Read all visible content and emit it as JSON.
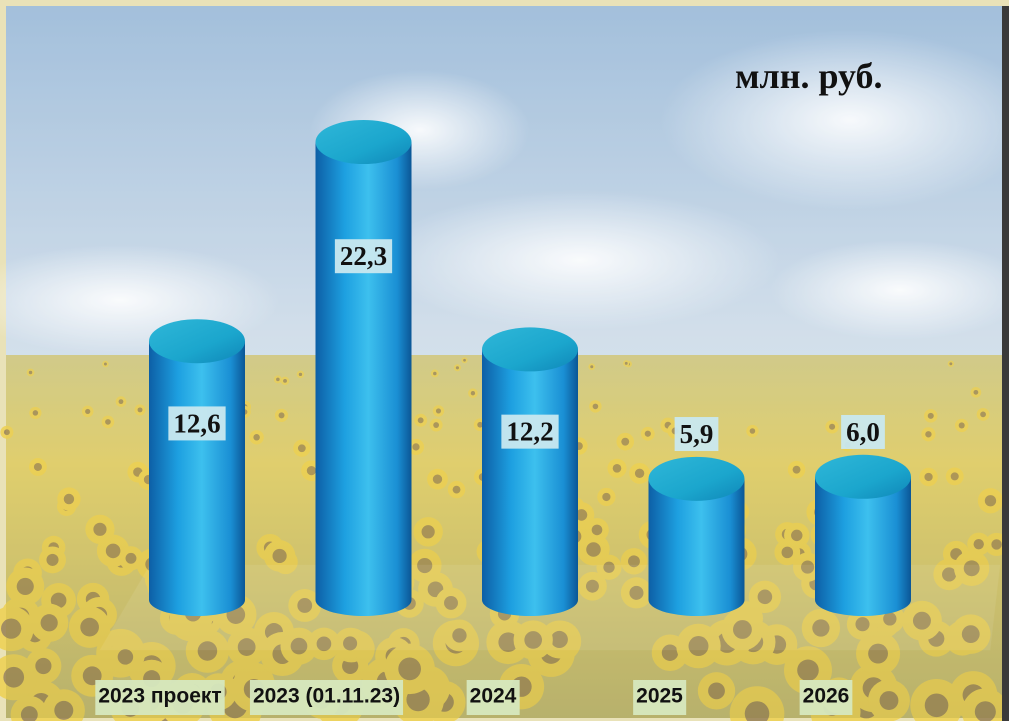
{
  "chart_data": {
    "type": "bar3d",
    "subtitle": "млн. руб.",
    "categories": [
      "2023 проект",
      "2023 (01.11.23)",
      "2024",
      "2025",
      "2026"
    ],
    "values": [
      12.6,
      22.3,
      12.2,
      5.9,
      6.0
    ],
    "value_labels": [
      "12,6",
      "22,3",
      "12,2",
      "5,9",
      "6,0"
    ],
    "color": "#1a9ad6"
  }
}
